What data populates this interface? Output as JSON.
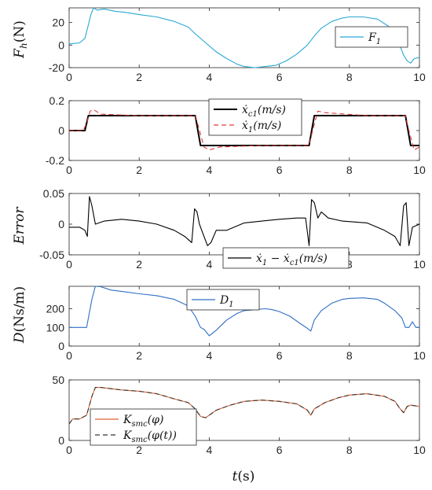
{
  "chart_data": [
    {
      "type": "line",
      "ylabel": "F_h(N)",
      "xlim": [
        0,
        10
      ],
      "ylim": [
        -20,
        33
      ],
      "yticks": [
        -20,
        0,
        20
      ],
      "xticks": [
        0,
        2,
        4,
        6,
        8,
        10
      ],
      "legend_position": "top-right",
      "series": [
        {
          "name": "F_1",
          "color": "#29a9d3",
          "style": "solid",
          "x": [
            0,
            0.3,
            0.45,
            0.55,
            0.62,
            0.7,
            0.8,
            1.0,
            1.3,
            1.6,
            2.0,
            2.5,
            3.0,
            3.4,
            3.6,
            3.9,
            4.2,
            4.5,
            4.8,
            5.0,
            5.3,
            5.6,
            5.9,
            6.2,
            6.5,
            6.8,
            7.0,
            7.2,
            7.5,
            7.8,
            8.0,
            8.4,
            8.8,
            9.1,
            9.3,
            9.45,
            9.55,
            9.65,
            9.75,
            9.85,
            10.0
          ],
          "y": [
            1,
            2,
            6,
            18,
            27,
            33,
            31,
            32,
            30,
            29,
            27,
            25,
            21,
            16,
            10,
            2,
            -6,
            -12,
            -17,
            -19,
            -20,
            -19,
            -18,
            -14,
            -8,
            0,
            8,
            15,
            21,
            24,
            25,
            25,
            23,
            17,
            10,
            -1,
            -9,
            -14,
            -16,
            -12,
            -11
          ]
        }
      ]
    },
    {
      "type": "line",
      "ylabel": "",
      "xlim": [
        0,
        10
      ],
      "ylim": [
        -0.2,
        0.2
      ],
      "yticks": [
        -0.2,
        0,
        0.2
      ],
      "yticklabels": [
        "-0.2",
        "0",
        "0.2"
      ],
      "xticks": [
        0,
        2,
        4,
        6,
        8,
        10
      ],
      "legend_position": "top-center",
      "series": [
        {
          "name": "ẋ_c1(m/s)",
          "color": "#000000",
          "style": "solid",
          "x": [
            0,
            0.45,
            0.55,
            3.6,
            3.75,
            6.85,
            7.0,
            9.6,
            9.75,
            10
          ],
          "y": [
            0,
            0,
            0.1,
            0.1,
            -0.1,
            -0.1,
            0.1,
            0.1,
            -0.1,
            -0.1
          ]
        },
        {
          "name": "ẋ_1(m/s)",
          "color": "#e03a3a",
          "style": "dashed",
          "x": [
            0,
            0.4,
            0.5,
            0.6,
            0.7,
            0.9,
            2.0,
            3.6,
            3.7,
            3.85,
            4.0,
            4.3,
            5.5,
            6.85,
            6.95,
            7.1,
            7.3,
            8.5,
            9.6,
            9.7,
            9.85,
            10
          ],
          "y": [
            0,
            0,
            0.05,
            0.13,
            0.14,
            0.11,
            0.1,
            0.1,
            0.02,
            -0.11,
            -0.13,
            -0.11,
            -0.1,
            -0.1,
            0.0,
            0.13,
            0.12,
            0.1,
            0.1,
            0.0,
            -0.13,
            -0.11
          ]
        }
      ]
    },
    {
      "type": "line",
      "ylabel": "Error",
      "xlim": [
        0,
        10
      ],
      "ylim": [
        -0.05,
        0.05
      ],
      "yticks": [
        -0.05,
        0,
        0.05
      ],
      "yticklabels": [
        "-0.05",
        "0",
        "0.05"
      ],
      "xticks": [
        0,
        2,
        4,
        6,
        8,
        10
      ],
      "legend_position": "bottom-right",
      "series": [
        {
          "name": "ẋ_1 − ẋ_c1(m/s)",
          "color": "#000000",
          "style": "solid",
          "x": [
            0,
            0.3,
            0.45,
            0.52,
            0.58,
            0.65,
            0.75,
            1.0,
            1.5,
            2.0,
            2.5,
            3.0,
            3.3,
            3.5,
            3.58,
            3.65,
            3.72,
            3.85,
            3.95,
            4.05,
            4.2,
            4.5,
            5.0,
            5.5,
            6.0,
            6.5,
            6.75,
            6.85,
            6.92,
            7.0,
            7.1,
            7.2,
            7.4,
            7.8,
            8.5,
            9.0,
            9.3,
            9.45,
            9.55,
            9.62,
            9.7,
            9.8,
            10.0
          ],
          "y": [
            -0.005,
            -0.005,
            -0.01,
            -0.02,
            0.045,
            0.03,
            0.0,
            0.005,
            0.008,
            0.005,
            0.0,
            -0.01,
            -0.02,
            -0.03,
            0.025,
            0.02,
            0.0,
            -0.02,
            -0.035,
            -0.03,
            -0.01,
            -0.01,
            0.002,
            0.005,
            0.008,
            0.01,
            0.01,
            -0.035,
            0.04,
            0.035,
            0.01,
            0.02,
            0.01,
            0.005,
            0.002,
            -0.01,
            -0.02,
            -0.035,
            0.03,
            0.035,
            -0.035,
            -0.005,
            0.0
          ]
        }
      ]
    },
    {
      "type": "line",
      "ylabel": "D(Ns/m)",
      "xlim": [
        0,
        10
      ],
      "ylim": [
        0,
        320
      ],
      "yticks": [
        0,
        100,
        200
      ],
      "xticks": [
        0,
        2,
        4,
        6,
        8,
        10
      ],
      "legend_position": "top-center",
      "series": [
        {
          "name": "D_1",
          "color": "#2f6fc4",
          "style": "solid",
          "x": [
            0,
            0.5,
            0.55,
            0.65,
            0.75,
            0.9,
            1.2,
            1.6,
            2.0,
            2.5,
            3.0,
            3.4,
            3.6,
            3.75,
            3.85,
            4.0,
            4.2,
            4.5,
            4.8,
            5.0,
            5.3,
            5.6,
            5.8,
            6.0,
            6.3,
            6.6,
            6.8,
            6.9,
            7.0,
            7.2,
            7.5,
            7.8,
            8.0,
            8.4,
            8.8,
            9.0,
            9.3,
            9.5,
            9.6,
            9.7,
            9.8,
            9.9,
            10.0
          ],
          "y": [
            100,
            100,
            150,
            250,
            320,
            318,
            300,
            290,
            280,
            270,
            250,
            215,
            160,
            100,
            90,
            55,
            85,
            140,
            175,
            190,
            195,
            200,
            195,
            185,
            160,
            120,
            95,
            80,
            140,
            190,
            230,
            250,
            255,
            258,
            250,
            230,
            190,
            150,
            100,
            100,
            130,
            100,
            100
          ]
        }
      ]
    },
    {
      "type": "line",
      "ylabel": "",
      "xlabel": "t(s)",
      "xlim": [
        0,
        10
      ],
      "ylim": [
        0,
        48
      ],
      "yticks": [
        0,
        50
      ],
      "ytick_pos": [
        0,
        48
      ],
      "ytick_values": [
        0,
        50
      ],
      "xticks": [
        0,
        2,
        4,
        6,
        8,
        10
      ],
      "legend_position": "bottom-left",
      "series": [
        {
          "name": "K_smc(φ)",
          "color": "#e06030",
          "style": "solid",
          "x": [
            0,
            0.1,
            0.3,
            0.5,
            0.65,
            0.75,
            0.9,
            1.5,
            2.0,
            2.5,
            3.0,
            3.4,
            3.6,
            3.75,
            3.9,
            4.05,
            4.2,
            4.6,
            5.0,
            5.5,
            6.0,
            6.5,
            6.8,
            6.9,
            7.0,
            7.3,
            7.7,
            8.0,
            8.5,
            9.0,
            9.3,
            9.45,
            9.55,
            9.65,
            9.75,
            10.0
          ],
          "y": [
            13,
            17,
            17,
            20,
            35,
            42,
            42,
            40,
            39,
            37,
            33,
            30,
            25,
            19,
            18,
            21,
            24,
            28,
            31,
            32,
            31,
            29,
            24,
            20,
            25,
            30,
            34,
            36,
            37,
            35,
            31,
            25,
            22,
            27,
            28,
            27
          ]
        },
        {
          "name": "K_smc(φ(t))",
          "color": "#333333",
          "style": "dashed",
          "x": [
            0,
            0.1,
            0.3,
            0.5,
            0.65,
            0.75,
            0.9,
            1.5,
            2.0,
            2.5,
            3.0,
            3.4,
            3.6,
            3.75,
            3.9,
            4.05,
            4.2,
            4.6,
            5.0,
            5.5,
            6.0,
            6.5,
            6.8,
            6.9,
            7.0,
            7.3,
            7.7,
            8.0,
            8.5,
            9.0,
            9.3,
            9.45,
            9.55,
            9.65,
            9.75,
            10.0
          ],
          "y": [
            13,
            17,
            17,
            20,
            35,
            42,
            42,
            40,
            39,
            37,
            33,
            30,
            25,
            19,
            18,
            21,
            24,
            28,
            31,
            32,
            31,
            29,
            24,
            20,
            25,
            30,
            34,
            36,
            37,
            35,
            31,
            25,
            22,
            27,
            28,
            27
          ]
        }
      ]
    }
  ]
}
